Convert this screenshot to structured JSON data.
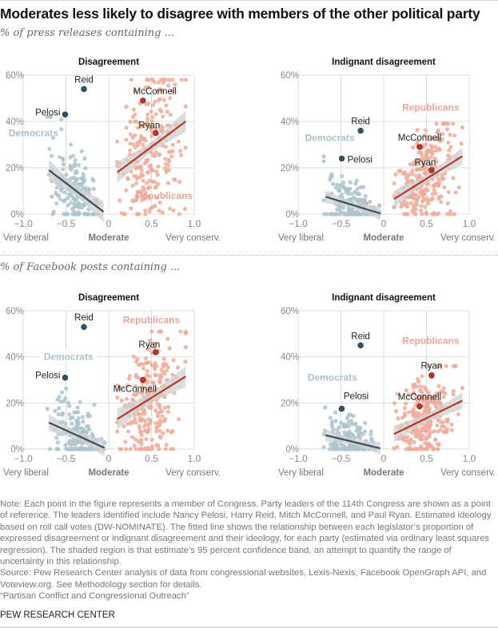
{
  "title": "Moderates less likely to disagree with members of the other political party",
  "sections": [
    {
      "subtitle": "% of press releases containing ..."
    },
    {
      "subtitle": "% of Facebook posts containing ..."
    }
  ],
  "colors": {
    "dem_point": "#adc3cc",
    "dem_leader": "#33505f",
    "dem_line": "#33505f",
    "dem_label": "#a9c0ca",
    "rep_point": "#efab9a",
    "rep_leader": "#b5372a",
    "rep_line": "#b5372a",
    "rep_label": "#e8a595",
    "band": "#cfcfcf",
    "grid": "#dcdcdc"
  },
  "chart_data": [
    {
      "type": "scatter",
      "section": "press_releases",
      "title": "Disagreement",
      "xlabel_left": "Very liberal",
      "xlabel_center": "Moderate",
      "xlabel_right": "Very conserv.",
      "xlim": [
        -1.0,
        1.0
      ],
      "ylim": [
        0,
        60
      ],
      "xticks": [
        "−1.0",
        "−0.5",
        "0",
        "0.5",
        "1.0"
      ],
      "yticks": [
        "0%",
        "20%",
        "40%",
        "60%"
      ],
      "grid": true,
      "party_labels": {
        "Democrats": {
          "x": -0.88,
          "y": 35
        },
        "Republicans": {
          "x": 0.65,
          "y": 8
        }
      },
      "leaders": [
        {
          "name": "Reid",
          "party": "D",
          "x": -0.29,
          "y": 54,
          "label_pos": "above"
        },
        {
          "name": "Pelosi",
          "party": "D",
          "x": -0.51,
          "y": 43,
          "label_pos": "left"
        },
        {
          "name": "McConnell",
          "party": "R",
          "x": 0.4,
          "y": 49,
          "label_pos": "above-right"
        },
        {
          "name": "Ryan",
          "party": "R",
          "x": 0.55,
          "y": 35,
          "label_pos": "above-left"
        }
      ],
      "fits": {
        "D": {
          "x": [
            -0.7,
            -0.06
          ],
          "y": [
            19,
            1
          ],
          "band": 2.5
        },
        "R": {
          "x": [
            0.1,
            0.9
          ],
          "y": [
            18,
            40
          ],
          "band": 2.5
        }
      },
      "clouds": {
        "D": {
          "n": 170,
          "xmin": -0.72,
          "xmax": -0.05,
          "ymax": 42
        },
        "R": {
          "n": 240,
          "xmin": 0.1,
          "xmax": 0.9,
          "ymax": 58
        }
      }
    },
    {
      "type": "scatter",
      "section": "press_releases",
      "title": "Indignant disagreement",
      "xlabel_left": "Very liberal",
      "xlabel_center": "Moderate",
      "xlabel_right": "Very conserv.",
      "xlim": [
        -1.0,
        1.0
      ],
      "ylim": [
        0,
        60
      ],
      "xticks": [
        "−1.0",
        "−0.5",
        "0",
        "0.5",
        "1.0"
      ],
      "yticks": [
        "0%",
        "20%",
        "40%",
        "60%"
      ],
      "grid": true,
      "party_labels": {
        "Democrats": {
          "x": -0.63,
          "y": 33
        },
        "Republicans": {
          "x": 0.55,
          "y": 46
        }
      },
      "leaders": [
        {
          "name": "Reid",
          "party": "D",
          "x": -0.27,
          "y": 36,
          "label_pos": "above"
        },
        {
          "name": "Pelosi",
          "party": "D",
          "x": -0.49,
          "y": 24,
          "label_pos": "right"
        },
        {
          "name": "McConnell",
          "party": "R",
          "x": 0.42,
          "y": 29,
          "label_pos": "above"
        },
        {
          "name": "Ryan",
          "party": "R",
          "x": 0.56,
          "y": 19,
          "label_pos": "above-left"
        }
      ],
      "fits": {
        "D": {
          "x": [
            -0.68,
            -0.04
          ],
          "y": [
            7.5,
            0.3
          ],
          "band": 1.5
        },
        "R": {
          "x": [
            0.12,
            0.92
          ],
          "y": [
            6.5,
            25
          ],
          "band": 2.0
        }
      },
      "clouds": {
        "D": {
          "n": 170,
          "xmin": -0.7,
          "xmax": -0.05,
          "ymax": 27
        },
        "R": {
          "n": 240,
          "xmin": 0.12,
          "xmax": 0.92,
          "ymax": 39
        }
      }
    },
    {
      "type": "scatter",
      "section": "facebook_posts",
      "title": "Disagreement",
      "xlabel_left": "Very liberal",
      "xlabel_center": "Moderate",
      "xlabel_right": "Very conserv.",
      "xlim": [
        -1.0,
        1.0
      ],
      "ylim": [
        0,
        60
      ],
      "xticks": [
        "−1.0",
        "−0.5",
        "0",
        "0.5",
        "1.0"
      ],
      "yticks": [
        "0%",
        "20%",
        "40%",
        "60%"
      ],
      "grid": true,
      "party_labels": {
        "Democrats": {
          "x": -0.47,
          "y": 40
        },
        "Republicans": {
          "x": 0.5,
          "y": 56
        }
      },
      "leaders": [
        {
          "name": "Reid",
          "party": "D",
          "x": -0.29,
          "y": 53,
          "label_pos": "above"
        },
        {
          "name": "Pelosi",
          "party": "D",
          "x": -0.51,
          "y": 31,
          "label_pos": "left"
        },
        {
          "name": "McConnell",
          "party": "R",
          "x": 0.4,
          "y": 30,
          "label_pos": "below-left"
        },
        {
          "name": "Ryan",
          "party": "R",
          "x": 0.55,
          "y": 42,
          "label_pos": "above-left"
        }
      ],
      "fits": {
        "D": {
          "x": [
            -0.7,
            -0.05
          ],
          "y": [
            11.5,
            0.5
          ],
          "band": 2.0
        },
        "R": {
          "x": [
            0.1,
            0.9
          ],
          "y": [
            13,
            31.5
          ],
          "band": 2.5
        }
      },
      "clouds": {
        "D": {
          "n": 170,
          "xmin": -0.72,
          "xmax": -0.05,
          "ymax": 28
        },
        "R": {
          "n": 240,
          "xmin": 0.1,
          "xmax": 0.9,
          "ymax": 51
        }
      }
    },
    {
      "type": "scatter",
      "section": "facebook_posts",
      "title": "Indignant disagreement",
      "xlabel_left": "Very liberal",
      "xlabel_center": "Moderate",
      "xlabel_right": "Very conserv.",
      "xlim": [
        -1.0,
        1.0
      ],
      "ylim": [
        0,
        60
      ],
      "xticks": [
        "−1.0",
        "−0.5",
        "0",
        "0.5",
        "1.0"
      ],
      "yticks": [
        "0%",
        "20%",
        "40%",
        "60%"
      ],
      "grid": true,
      "party_labels": {
        "Democrats": {
          "x": -0.6,
          "y": 31
        },
        "Republicans": {
          "x": 0.55,
          "y": 47
        }
      },
      "leaders": [
        {
          "name": "Reid",
          "party": "D",
          "x": -0.27,
          "y": 45,
          "label_pos": "above"
        },
        {
          "name": "Pelosi",
          "party": "D",
          "x": -0.49,
          "y": 17.5,
          "label_pos": "above-right"
        },
        {
          "name": "McConnell",
          "party": "R",
          "x": 0.42,
          "y": 18.5,
          "label_pos": "above"
        },
        {
          "name": "Ryan",
          "party": "R",
          "x": 0.56,
          "y": 32,
          "label_pos": "above"
        }
      ],
      "fits": {
        "D": {
          "x": [
            -0.68,
            -0.04
          ],
          "y": [
            6,
            0.3
          ],
          "band": 1.5
        },
        "R": {
          "x": [
            0.12,
            0.92
          ],
          "y": [
            6.5,
            21
          ],
          "band": 2.0
        }
      },
      "clouds": {
        "D": {
          "n": 170,
          "xmin": -0.7,
          "xmax": -0.05,
          "ymax": 18
        },
        "R": {
          "n": 240,
          "xmin": 0.12,
          "xmax": 0.92,
          "ymax": 36
        }
      }
    }
  ],
  "notes": [
    "Note: Each point in the figure represents a member of Congress. Party leaders of the 114th Congress are shown as a point of reference. The leaders identified include Nancy Pelosi, Harry Reid, Mitch McConnell, and Paul Ryan. Estimated ideology based on roll call votes (DW-NOMINATE). The fitted line shows the relationship between each legislator’s proportion of expressed disagreement or indignant disagreement and their ideology, for each party (estimated via ordinary least squares regression). The shaded region is that estimate’s 95 percent confidence band, an attempt to quantify the range of uncertainty in this relationship.",
    "Source: Pew Research Center analysis of data from congressional websites, Lexis-Nexis, Facebook OpenGraph API, and Voteview.org. See Methodology section for details.",
    "“Partisan Conflict and Congressional Outreach”"
  ],
  "brand": "PEW RESEARCH CENTER"
}
